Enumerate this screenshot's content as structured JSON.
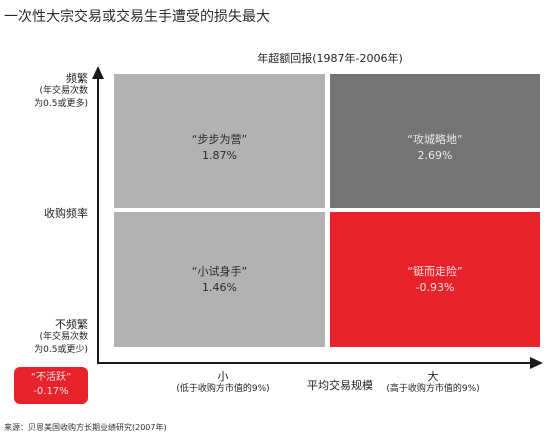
{
  "title": "一次性大宗交易或交易生手遭受的损失最大",
  "header": "年超额回报(1987年-2006年)",
  "y_axis": {
    "top_label": "频繁",
    "top_sub": "(年交易次数",
    "top_sub2": "为0.5或更多)",
    "middle_label": "收购频率",
    "bottom_label": "不频繁",
    "bottom_sub": "(年交易次数",
    "bottom_sub2": "为0.5或更少)"
  },
  "x_axis": {
    "small_label": "小",
    "small_sub": "(低于收购方市值的9%)",
    "middle_label": "平均交易规模",
    "large_label": "大",
    "large_sub": "(高于收购方市值的9%)"
  },
  "quadrants": {
    "top_left": {
      "name": "“步步为营”",
      "value": "1.87%",
      "color": "#b2b2b2"
    },
    "top_right": {
      "name": "“攻城略地”",
      "value": "2.69%",
      "color": "#747474"
    },
    "bottom_left": {
      "name": "“小试身手”",
      "value": "1.46%",
      "color": "#b2b2b2"
    },
    "bottom_right": {
      "name": "“铤而走险”",
      "value": "-0.93%",
      "color": "#e8222b"
    }
  },
  "inactive": {
    "name": "“不活跃”",
    "value": "-0.17%",
    "color": "#e8222b"
  },
  "source": "来源：贝恩美国收购方长期业绩研究(2007年)"
}
